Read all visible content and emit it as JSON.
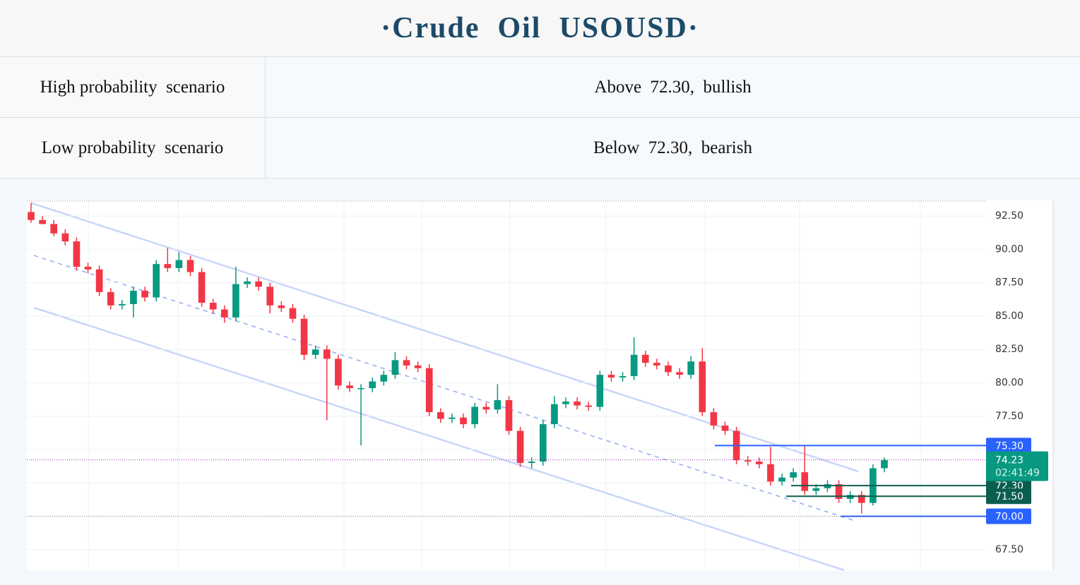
{
  "header": {
    "title": "·Crude  Oil  USOUSD·"
  },
  "table": {
    "rows": [
      [
        "High probability  scenario",
        "Above  72.30,  bullish"
      ],
      [
        "Low probability  scenario",
        "Below  72.30,  bearish"
      ]
    ]
  },
  "chart_data": {
    "type": "candlestick",
    "up_color": "#089981",
    "down_color": "#f23645",
    "ylim": [
      65.96,
      93.67
    ],
    "yticks": [
      {
        "value": 92.5,
        "label": "92.50"
      },
      {
        "value": 90,
        "label": "90.00"
      },
      {
        "value": 87.5,
        "label": "87.50"
      },
      {
        "value": 85,
        "label": "85.00"
      },
      {
        "value": 82.5,
        "label": "82.50"
      },
      {
        "value": 80,
        "label": "80.00"
      },
      {
        "value": 77.5,
        "label": "77.50"
      },
      {
        "value": 75,
        "label": "75.00"
      },
      {
        "value": 72.5,
        "label": "72.50"
      },
      {
        "value": 70,
        "label": "70.00"
      },
      {
        "value": 67.5,
        "label": "67.50"
      }
    ],
    "grid": true,
    "open": [
      92.8,
      92.2,
      91.9,
      91.2,
      90.6,
      88.7,
      88.5,
      86.8,
      85.8,
      85.9,
      86.9,
      86.4,
      88.9,
      88.6,
      89.2,
      88.3,
      86.0,
      85.5,
      84.9,
      87.4,
      87.6,
      87.2,
      85.8,
      85.6,
      84.8,
      82.1,
      82.5,
      81.8,
      79.8,
      79.6,
      79.6,
      80.1,
      80.6,
      81.7,
      81.3,
      81.1,
      77.8,
      77.3,
      77.4,
      76.9,
      78.2,
      78.0,
      78.7,
      76.4,
      74.0,
      74.1,
      76.9,
      78.4,
      78.6,
      78.3,
      78.2,
      80.6,
      80.4,
      80.5,
      82.1,
      81.5,
      81.3,
      80.8,
      80.6,
      81.6,
      77.8,
      76.8,
      76.4,
      74.2,
      74.1,
      73.9,
      72.6,
      72.9,
      73.3,
      71.9,
      72.1,
      72.4,
      71.3,
      71.6,
      71.0,
      73.6
    ],
    "high": [
      93.5,
      92.5,
      92.2,
      91.5,
      90.9,
      89.0,
      88.8,
      87.1,
      86.2,
      87.2,
      87.2,
      89.2,
      90.1,
      89.8,
      89.5,
      88.6,
      86.3,
      85.8,
      88.7,
      87.9,
      87.9,
      87.5,
      86.1,
      85.9,
      85.1,
      82.8,
      82.8,
      82.1,
      80.1,
      79.9,
      80.4,
      80.9,
      82.3,
      82.0,
      81.6,
      81.4,
      78.1,
      77.7,
      77.7,
      78.5,
      78.5,
      79.9,
      79.0,
      76.7,
      74.4,
      77.2,
      79.0,
      78.9,
      78.9,
      78.6,
      80.9,
      80.9,
      80.8,
      83.4,
      82.4,
      81.8,
      81.6,
      81.1,
      82.0,
      82.6,
      78.1,
      77.1,
      76.7,
      74.5,
      74.4,
      75.2,
      73.2,
      73.6,
      75.3,
      72.4,
      72.7,
      72.7,
      71.9,
      71.9,
      73.9,
      74.4
    ],
    "low": [
      92.0,
      91.9,
      91.0,
      90.3,
      88.4,
      88.2,
      86.5,
      85.5,
      85.5,
      84.9,
      86.1,
      86.1,
      88.3,
      88.3,
      88.0,
      85.7,
      85.2,
      84.5,
      84.6,
      87.1,
      86.9,
      85.2,
      85.3,
      84.5,
      81.7,
      81.8,
      77.2,
      79.5,
      79.3,
      75.3,
      79.3,
      79.8,
      80.3,
      81.0,
      80.8,
      77.5,
      77.0,
      77.0,
      76.6,
      76.6,
      77.7,
      77.7,
      76.1,
      73.7,
      73.6,
      73.8,
      76.6,
      78.1,
      78.0,
      77.9,
      77.9,
      80.1,
      80.1,
      80.2,
      81.2,
      81.0,
      80.5,
      80.3,
      80.3,
      77.5,
      76.5,
      76.1,
      73.9,
      73.8,
      73.6,
      72.3,
      72.3,
      72.6,
      71.6,
      71.6,
      71.8,
      71.0,
      71.0,
      70.2,
      70.8,
      73.3
    ],
    "close": [
      92.2,
      91.9,
      91.2,
      90.6,
      88.7,
      88.5,
      86.8,
      85.8,
      85.9,
      86.9,
      86.4,
      88.9,
      88.6,
      89.2,
      88.3,
      86.0,
      85.5,
      84.9,
      87.4,
      87.6,
      87.2,
      85.8,
      85.6,
      84.8,
      82.1,
      82.5,
      81.8,
      79.8,
      79.6,
      79.6,
      80.1,
      80.6,
      81.7,
      81.3,
      81.1,
      77.8,
      77.3,
      77.4,
      76.9,
      78.2,
      78.0,
      78.7,
      76.4,
      74.0,
      74.1,
      76.9,
      78.4,
      78.6,
      78.3,
      78.2,
      80.6,
      80.4,
      80.5,
      82.1,
      81.5,
      81.3,
      80.8,
      80.6,
      81.6,
      77.8,
      76.8,
      76.4,
      74.2,
      74.1,
      73.9,
      72.6,
      72.9,
      73.3,
      71.9,
      72.1,
      72.4,
      71.3,
      71.6,
      71.0,
      73.6,
      74.2
    ],
    "levels": [
      {
        "value": 75.3,
        "label": "75.30",
        "color": "#2962ff"
      },
      {
        "value": 72.3,
        "label": "72.30",
        "color": "#0b5e4f"
      },
      {
        "value": 71.5,
        "label": "71.50",
        "color": "#0b5e4f"
      },
      {
        "value": 70,
        "label": "70.00",
        "color": "#2962ff"
      }
    ],
    "current_price": {
      "value": 74.23,
      "label": "74.23",
      "countdown": "02:41:49",
      "color": "#089981"
    }
  }
}
